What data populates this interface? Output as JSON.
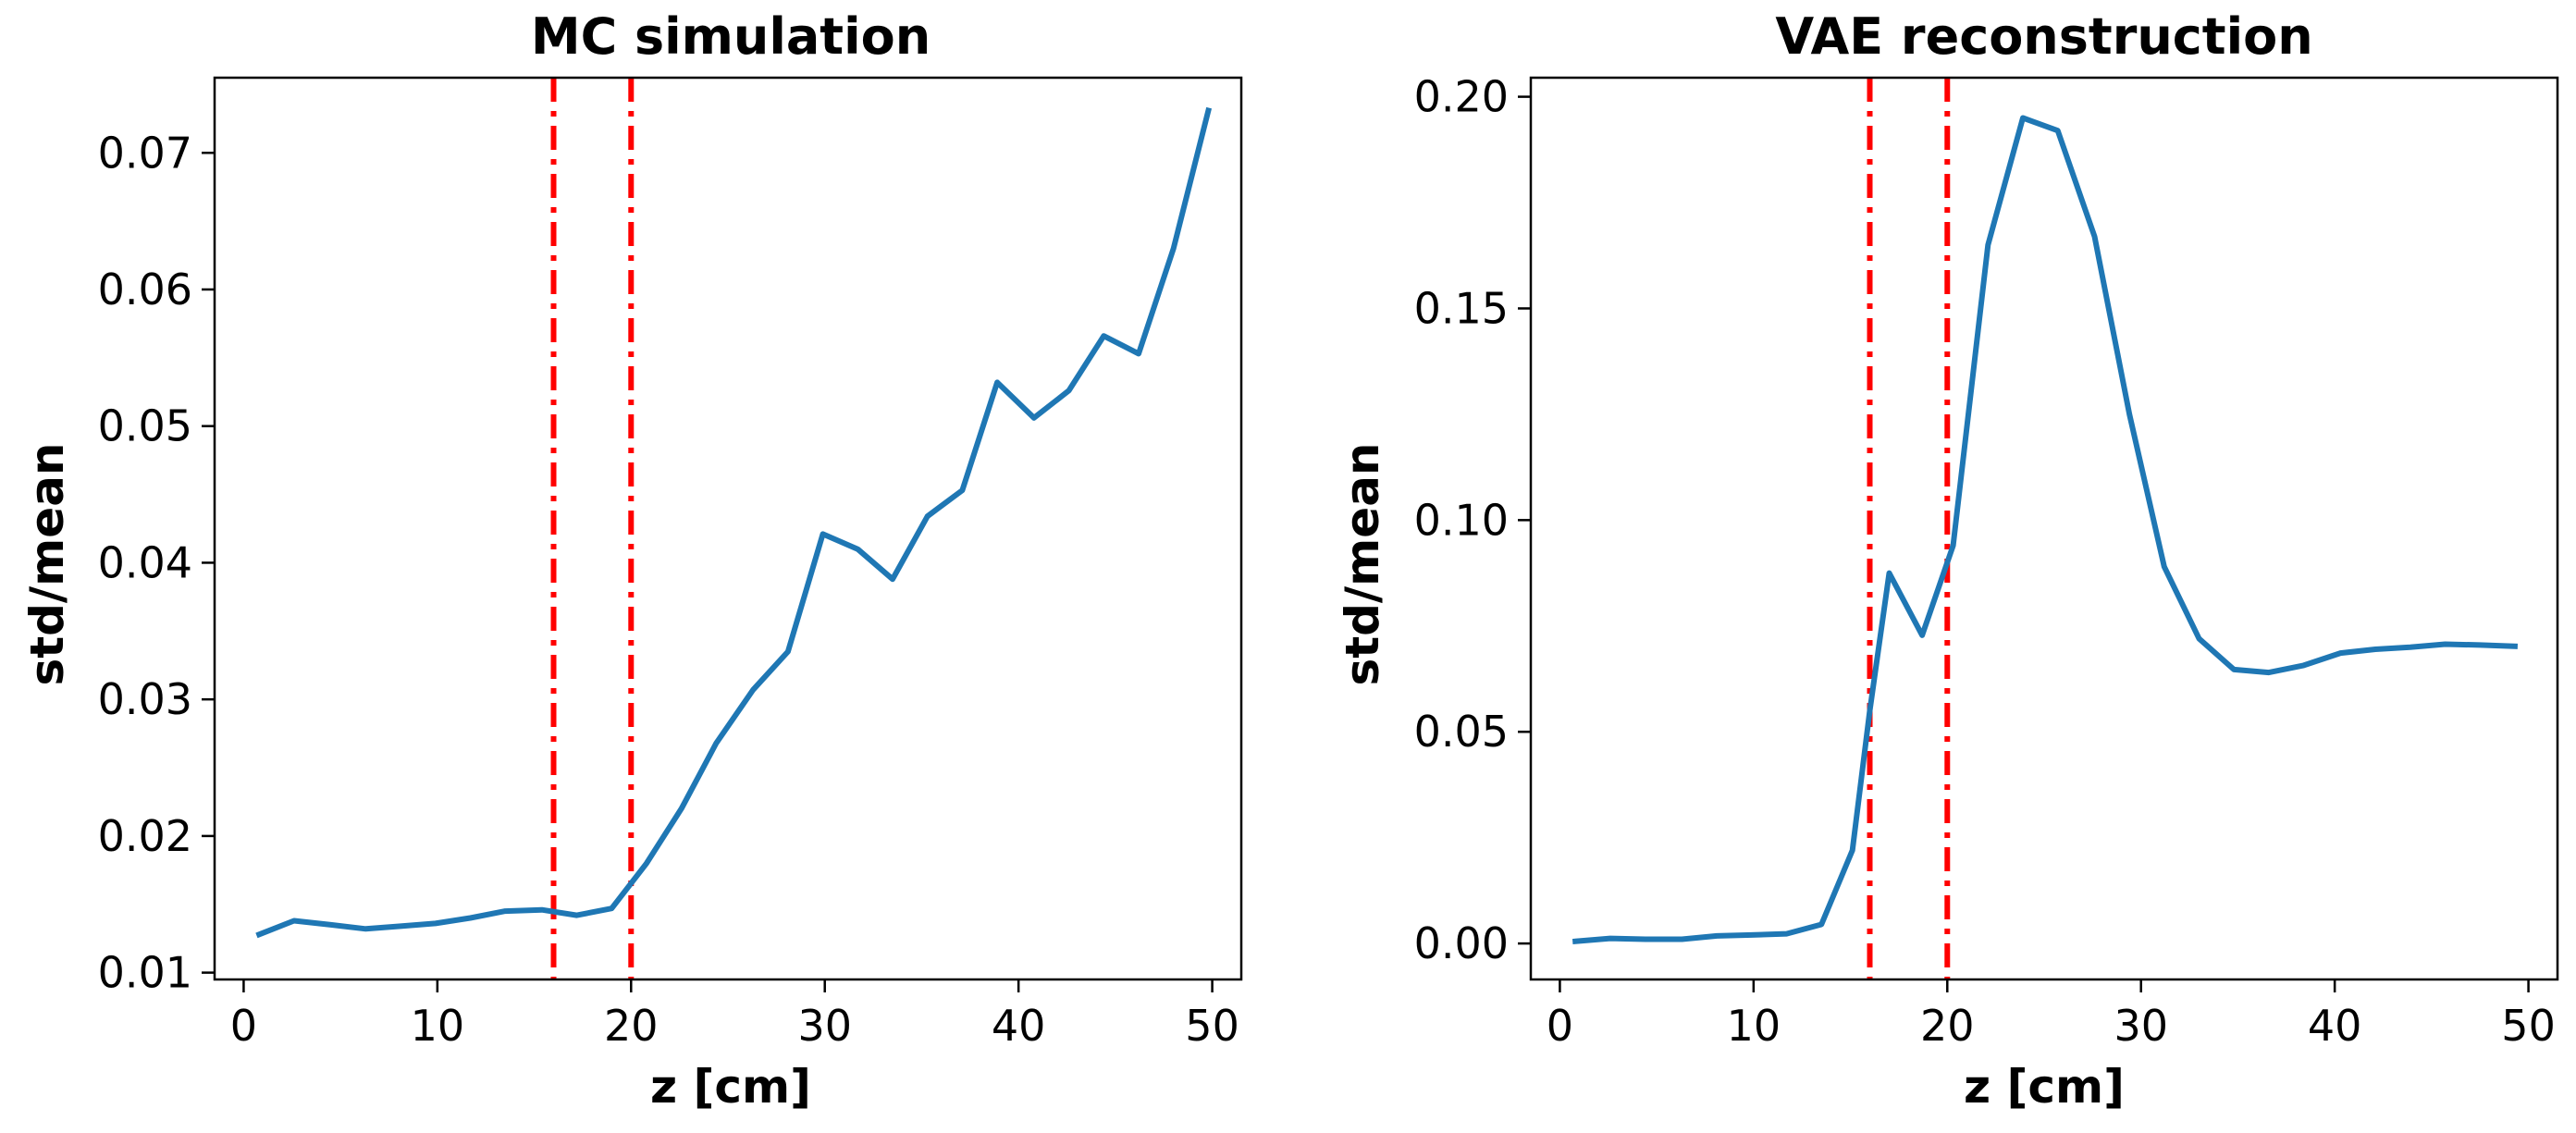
{
  "chart_data": [
    {
      "type": "line",
      "title": "MC simulation",
      "xlabel": "z [cm]",
      "ylabel": "std/mean",
      "xlim": [
        -1.5,
        51.5
      ],
      "ylim": [
        0.0095,
        0.0755
      ],
      "xticks": [
        0,
        10,
        20,
        30,
        40,
        50
      ],
      "xtick_labels": [
        "0",
        "10",
        "20",
        "30",
        "40",
        "50"
      ],
      "yticks": [
        0.01,
        0.02,
        0.03,
        0.04,
        0.05,
        0.06,
        0.07
      ],
      "ytick_labels": [
        "0.01",
        "0.02",
        "0.03",
        "0.04",
        "0.05",
        "0.06",
        "0.07"
      ],
      "vlines": [
        16,
        20
      ],
      "grid": false,
      "series": [
        {
          "name": "std/mean",
          "color": "#1f77b4",
          "x": [
            0.8,
            2.6,
            4.5,
            6.3,
            8.1,
            9.9,
            11.7,
            13.5,
            15.4,
            17.2,
            19.0,
            20.8,
            22.6,
            24.4,
            26.3,
            28.1,
            29.9,
            31.7,
            33.5,
            35.3,
            37.1,
            38.9,
            40.8,
            42.6,
            44.4,
            46.2,
            48.0,
            49.8
          ],
          "values": [
            0.0128,
            0.0138,
            0.0135,
            0.0132,
            0.0134,
            0.0136,
            0.014,
            0.0145,
            0.0146,
            0.0142,
            0.0147,
            0.018,
            0.022,
            0.0268,
            0.0307,
            0.0335,
            0.0421,
            0.041,
            0.0388,
            0.0434,
            0.0453,
            0.0532,
            0.0506,
            0.0526,
            0.0566,
            0.0553,
            0.063,
            0.0731
          ]
        }
      ]
    },
    {
      "type": "line",
      "title": "VAE reconstruction",
      "xlabel": "z [cm]",
      "ylabel": "std/mean",
      "xlim": [
        -1.5,
        51.5
      ],
      "ylim": [
        -0.0085,
        0.2045
      ],
      "xticks": [
        0,
        10,
        20,
        30,
        40,
        50
      ],
      "xtick_labels": [
        "0",
        "10",
        "20",
        "30",
        "40",
        "50"
      ],
      "yticks": [
        0.0,
        0.05,
        0.1,
        0.15,
        0.2
      ],
      "ytick_labels": [
        "0.00",
        "0.05",
        "0.10",
        "0.15",
        "0.20"
      ],
      "vlines": [
        16,
        20
      ],
      "grid": false,
      "series": [
        {
          "name": "std/mean",
          "color": "#1f77b4",
          "x": [
            0.8,
            2.6,
            4.5,
            6.3,
            8.1,
            9.9,
            11.7,
            13.5,
            15.1,
            16.0,
            17.0,
            18.7,
            20.3,
            22.1,
            23.9,
            25.7,
            27.6,
            29.4,
            31.2,
            33.0,
            34.8,
            36.6,
            38.4,
            40.3,
            42.1,
            43.9,
            45.7,
            47.5,
            49.3
          ],
          "values": [
            0.0005,
            0.0012,
            0.001,
            0.001,
            0.0018,
            0.002,
            0.0023,
            0.0045,
            0.022,
            0.055,
            0.0875,
            0.0728,
            0.094,
            0.165,
            0.195,
            0.192,
            0.167,
            0.125,
            0.089,
            0.072,
            0.0647,
            0.064,
            0.0657,
            0.0686,
            0.0695,
            0.07,
            0.0707,
            0.0705,
            0.0702
          ]
        }
      ]
    }
  ]
}
